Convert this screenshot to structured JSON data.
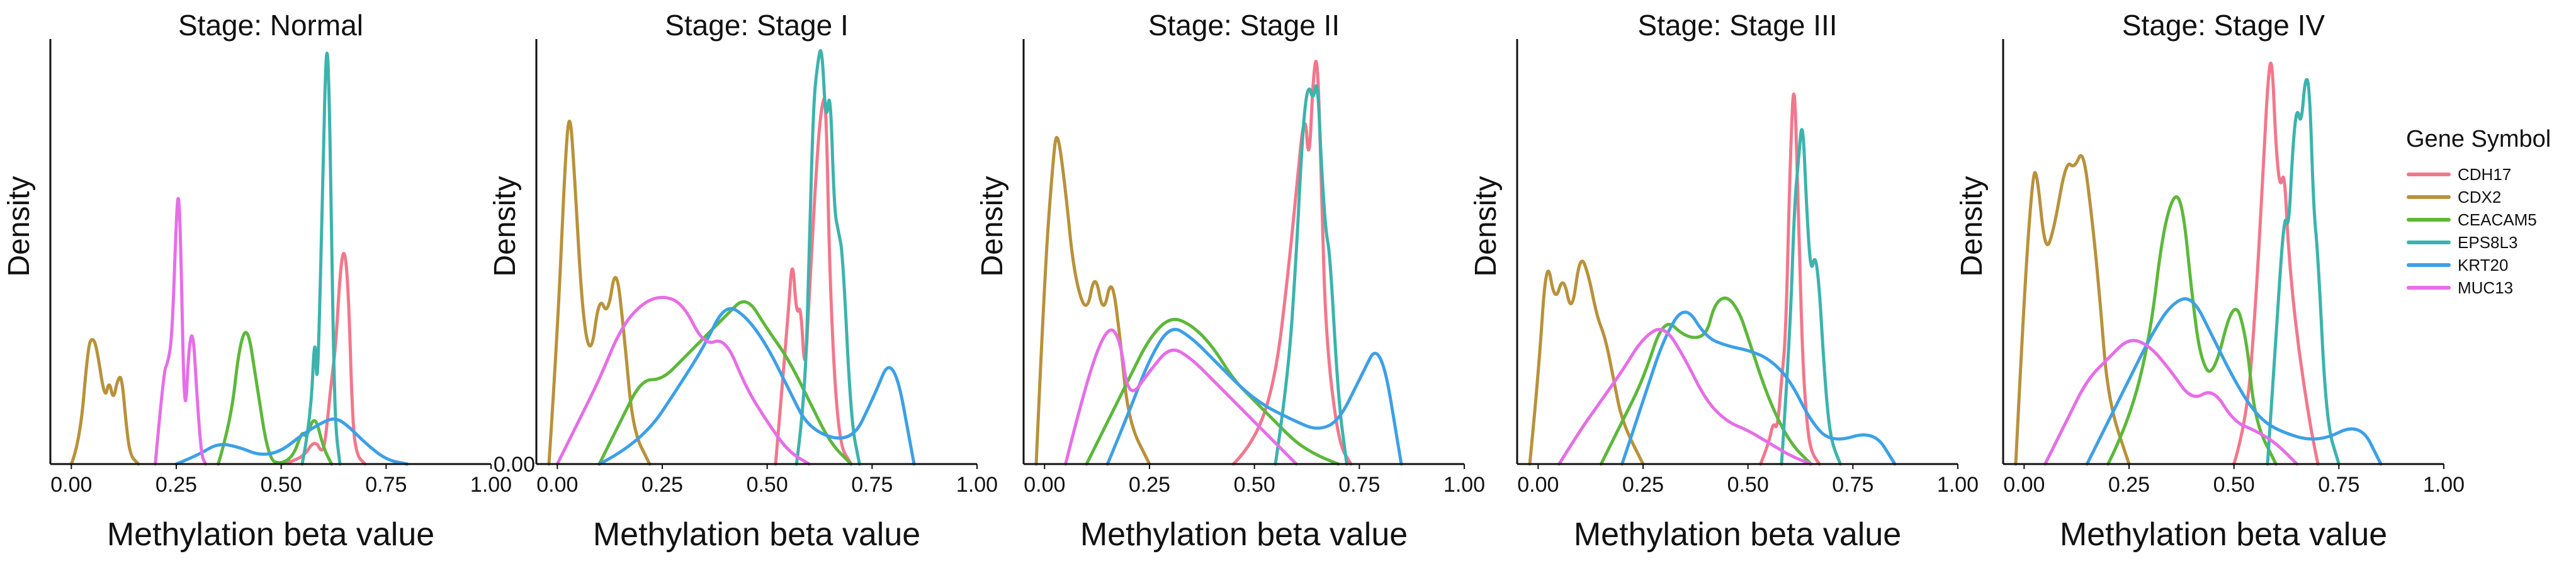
{
  "legend": {
    "title": "Gene Symbol",
    "entries": [
      {
        "label": "CDH17",
        "color": "#f2778c"
      },
      {
        "label": "CDX2",
        "color": "#b8913a"
      },
      {
        "label": "CEACAM5",
        "color": "#5cb83a"
      },
      {
        "label": "EPS8L3",
        "color": "#3cb3ad"
      },
      {
        "label": "KRT20",
        "color": "#3ca0e6"
      },
      {
        "label": "MUC13",
        "color": "#e66ee6"
      }
    ]
  },
  "chart_data": [
    {
      "type": "line",
      "title": "Stage:  Normal",
      "xlabel": "Methylation beta value",
      "ylabel": "Density",
      "xlim": [
        -0.05,
        1.0
      ],
      "ylim": [
        0,
        1.0
      ],
      "xticks": [
        0.0,
        0.25,
        0.5,
        0.75,
        1.0
      ],
      "xtick_labels": [
        "0.00",
        "0.25",
        "0.50",
        "0.75",
        "1.00"
      ],
      "yticks": [],
      "series": [
        {
          "name": "CDH17",
          "x": [
            0.5,
            0.55,
            0.58,
            0.6,
            0.61,
            0.62,
            0.63,
            0.64,
            0.65,
            0.66,
            0.67,
            0.68,
            0.7
          ],
          "y": [
            0,
            0.01,
            0.06,
            0.02,
            0.1,
            0.2,
            0.28,
            0.45,
            0.52,
            0.42,
            0.1,
            0.02,
            0
          ]
        },
        {
          "name": "CDX2",
          "x": [
            0.0,
            0.02,
            0.04,
            0.05,
            0.06,
            0.08,
            0.09,
            0.1,
            0.11,
            0.12,
            0.13,
            0.14,
            0.16
          ],
          "y": [
            0,
            0.05,
            0.28,
            0.3,
            0.28,
            0.15,
            0.2,
            0.15,
            0.2,
            0.21,
            0.1,
            0.02,
            0
          ]
        },
        {
          "name": "CEACAM5",
          "x": [
            0.35,
            0.38,
            0.4,
            0.42,
            0.44,
            0.47,
            0.5,
            0.53,
            0.55,
            0.56,
            0.58,
            0.6,
            0.62
          ],
          "y": [
            0,
            0.1,
            0.28,
            0.33,
            0.2,
            0.01,
            0,
            0.02,
            0.08,
            0.06,
            0.12,
            0.04,
            0
          ]
        },
        {
          "name": "EPS8L3",
          "x": [
            0.55,
            0.57,
            0.58,
            0.585,
            0.59,
            0.6,
            0.605,
            0.61,
            0.615,
            0.62,
            0.625,
            0.63,
            0.64
          ],
          "y": [
            0,
            0.1,
            0.32,
            0.18,
            0.3,
            0.7,
            0.92,
            1.0,
            0.85,
            0.55,
            0.25,
            0.08,
            0
          ]
        },
        {
          "name": "KRT20",
          "x": [
            0.25,
            0.3,
            0.35,
            0.4,
            0.45,
            0.5,
            0.55,
            0.6,
            0.63,
            0.66,
            0.7,
            0.75,
            0.8
          ],
          "y": [
            0,
            0.02,
            0.05,
            0.04,
            0.02,
            0.03,
            0.07,
            0.1,
            0.11,
            0.09,
            0.05,
            0.01,
            0
          ]
        },
        {
          "name": "MUC13",
          "x": [
            0.2,
            0.22,
            0.23,
            0.24,
            0.25,
            0.255,
            0.26,
            0.27,
            0.28,
            0.29,
            0.3,
            0.31,
            0.32
          ],
          "y": [
            0,
            0.22,
            0.24,
            0.3,
            0.58,
            0.65,
            0.55,
            0.08,
            0.28,
            0.32,
            0.15,
            0.02,
            0
          ]
        }
      ]
    },
    {
      "type": "line",
      "title": "Stage:  Stage I",
      "xlabel": "Methylation beta value",
      "ylabel": "Density",
      "xlim": [
        -0.05,
        1.0
      ],
      "ylim": [
        0,
        1.0
      ],
      "xticks": [
        0.0,
        0.25,
        0.5,
        0.75,
        1.0
      ],
      "xtick_labels": [
        "0.00",
        "0.25",
        "0.50",
        "0.75",
        "1.00"
      ],
      "yticks": [
        0.0
      ],
      "ytick_labels": [
        "0.00"
      ],
      "series": [
        {
          "name": "CDH17",
          "x": [
            0.52,
            0.55,
            0.56,
            0.57,
            0.58,
            0.59,
            0.6,
            0.62,
            0.63,
            0.64,
            0.65,
            0.67,
            0.7
          ],
          "y": [
            0,
            0.35,
            0.5,
            0.35,
            0.38,
            0.2,
            0.4,
            0.75,
            0.85,
            0.88,
            0.4,
            0.05,
            0
          ]
        },
        {
          "name": "CDX2",
          "x": [
            -0.02,
            0.0,
            0.02,
            0.03,
            0.04,
            0.06,
            0.08,
            0.1,
            0.12,
            0.14,
            0.16,
            0.18,
            0.22
          ],
          "y": [
            0,
            0.3,
            0.75,
            0.84,
            0.7,
            0.35,
            0.25,
            0.4,
            0.35,
            0.48,
            0.3,
            0.08,
            0
          ]
        },
        {
          "name": "CEACAM5",
          "x": [
            0.1,
            0.15,
            0.2,
            0.25,
            0.3,
            0.35,
            0.4,
            0.45,
            0.5,
            0.55,
            0.6,
            0.65,
            0.7
          ],
          "y": [
            0,
            0.1,
            0.2,
            0.2,
            0.25,
            0.3,
            0.35,
            0.4,
            0.32,
            0.25,
            0.15,
            0.05,
            0
          ]
        },
        {
          "name": "EPS8L3",
          "x": [
            0.57,
            0.59,
            0.6,
            0.61,
            0.62,
            0.63,
            0.64,
            0.65,
            0.66,
            0.67,
            0.68,
            0.7,
            0.72
          ],
          "y": [
            0,
            0.15,
            0.5,
            0.85,
            0.95,
            1.0,
            0.8,
            0.9,
            0.6,
            0.55,
            0.5,
            0.1,
            0
          ]
        },
        {
          "name": "KRT20",
          "x": [
            0.1,
            0.2,
            0.3,
            0.35,
            0.4,
            0.45,
            0.5,
            0.55,
            0.6,
            0.7,
            0.75,
            0.8,
            0.85
          ],
          "y": [
            0,
            0.05,
            0.2,
            0.28,
            0.38,
            0.35,
            0.28,
            0.18,
            0.08,
            0.05,
            0.15,
            0.27,
            0
          ]
        },
        {
          "name": "MUC13",
          "x": [
            0.0,
            0.05,
            0.1,
            0.15,
            0.2,
            0.25,
            0.3,
            0.35,
            0.4,
            0.45,
            0.5,
            0.55,
            0.6
          ],
          "y": [
            0,
            0.1,
            0.2,
            0.32,
            0.38,
            0.4,
            0.38,
            0.28,
            0.3,
            0.18,
            0.1,
            0.03,
            0
          ]
        }
      ]
    },
    {
      "type": "line",
      "title": "Stage:  Stage II",
      "xlabel": "Methylation beta value",
      "ylabel": "Density",
      "xlim": [
        -0.05,
        1.0
      ],
      "ylim": [
        0,
        1.0
      ],
      "xticks": [
        0.0,
        0.25,
        0.5,
        0.75,
        1.0
      ],
      "xtick_labels": [
        "0.00",
        "0.25",
        "0.50",
        "0.75",
        "1.00"
      ],
      "yticks": [],
      "series": [
        {
          "name": "CDH17",
          "x": [
            0.45,
            0.5,
            0.55,
            0.58,
            0.6,
            0.62,
            0.63,
            0.64,
            0.65,
            0.66,
            0.67,
            0.7,
            0.73
          ],
          "y": [
            0,
            0.05,
            0.2,
            0.45,
            0.65,
            0.85,
            0.7,
            0.92,
            0.98,
            0.65,
            0.3,
            0.05,
            0
          ]
        },
        {
          "name": "CDX2",
          "x": [
            -0.02,
            0.0,
            0.02,
            0.03,
            0.05,
            0.07,
            0.1,
            0.12,
            0.14,
            0.16,
            0.18,
            0.2,
            0.25
          ],
          "y": [
            0,
            0.45,
            0.72,
            0.8,
            0.65,
            0.45,
            0.35,
            0.46,
            0.35,
            0.45,
            0.3,
            0.1,
            0
          ]
        },
        {
          "name": "CEACAM5",
          "x": [
            0.1,
            0.15,
            0.2,
            0.25,
            0.3,
            0.35,
            0.4,
            0.45,
            0.5,
            0.55,
            0.6,
            0.65,
            0.7
          ],
          "y": [
            0,
            0.1,
            0.2,
            0.3,
            0.35,
            0.33,
            0.28,
            0.2,
            0.15,
            0.1,
            0.05,
            0.02,
            0
          ]
        },
        {
          "name": "EPS8L3",
          "x": [
            0.55,
            0.58,
            0.6,
            0.61,
            0.62,
            0.63,
            0.64,
            0.65,
            0.66,
            0.67,
            0.68,
            0.7,
            0.72
          ],
          "y": [
            0,
            0.2,
            0.5,
            0.7,
            0.85,
            0.9,
            0.86,
            0.92,
            0.7,
            0.55,
            0.5,
            0.15,
            0
          ]
        },
        {
          "name": "KRT20",
          "x": [
            0.15,
            0.2,
            0.25,
            0.3,
            0.35,
            0.4,
            0.5,
            0.6,
            0.65,
            0.7,
            0.75,
            0.8,
            0.85
          ],
          "y": [
            0,
            0.12,
            0.25,
            0.33,
            0.3,
            0.25,
            0.15,
            0.1,
            0.08,
            0.1,
            0.2,
            0.3,
            0
          ]
        },
        {
          "name": "MUC13",
          "x": [
            0.05,
            0.1,
            0.15,
            0.18,
            0.2,
            0.25,
            0.3,
            0.35,
            0.4,
            0.45,
            0.5,
            0.55,
            0.6
          ],
          "y": [
            0,
            0.2,
            0.33,
            0.3,
            0.15,
            0.22,
            0.28,
            0.25,
            0.2,
            0.15,
            0.1,
            0.05,
            0
          ]
        }
      ]
    },
    {
      "type": "line",
      "title": "Stage:  Stage III",
      "xlabel": "Methylation beta value",
      "ylabel": "Density",
      "xlim": [
        -0.05,
        1.0
      ],
      "ylim": [
        0,
        1.0
      ],
      "xticks": [
        0.0,
        0.25,
        0.5,
        0.75,
        1.0
      ],
      "xtick_labels": [
        "0.00",
        "0.25",
        "0.50",
        "0.75",
        "1.00"
      ],
      "yticks": [],
      "series": [
        {
          "name": "CDH17",
          "x": [
            0.53,
            0.55,
            0.56,
            0.57,
            0.58,
            0.59,
            0.6,
            0.61,
            0.62,
            0.63,
            0.64,
            0.65,
            0.67
          ],
          "y": [
            0,
            0.05,
            0.1,
            0.08,
            0.2,
            0.3,
            0.7,
            0.95,
            0.6,
            0.25,
            0.1,
            0.03,
            0
          ]
        },
        {
          "name": "CDX2",
          "x": [
            -0.02,
            0.0,
            0.02,
            0.04,
            0.06,
            0.08,
            0.1,
            0.12,
            0.14,
            0.16,
            0.18,
            0.2,
            0.25
          ],
          "y": [
            0,
            0.2,
            0.5,
            0.38,
            0.45,
            0.35,
            0.5,
            0.45,
            0.35,
            0.3,
            0.2,
            0.1,
            0
          ]
        },
        {
          "name": "CEACAM5",
          "x": [
            0.15,
            0.2,
            0.25,
            0.3,
            0.35,
            0.4,
            0.42,
            0.45,
            0.48,
            0.5,
            0.55,
            0.6,
            0.65
          ],
          "y": [
            0,
            0.1,
            0.2,
            0.35,
            0.3,
            0.3,
            0.38,
            0.4,
            0.36,
            0.3,
            0.15,
            0.05,
            0
          ]
        },
        {
          "name": "EPS8L3",
          "x": [
            0.58,
            0.6,
            0.61,
            0.62,
            0.63,
            0.64,
            0.65,
            0.66,
            0.67,
            0.68,
            0.69,
            0.7,
            0.72
          ],
          "y": [
            0,
            0.3,
            0.6,
            0.72,
            0.83,
            0.6,
            0.45,
            0.5,
            0.42,
            0.25,
            0.12,
            0.05,
            0
          ]
        },
        {
          "name": "KRT20",
          "x": [
            0.2,
            0.25,
            0.3,
            0.35,
            0.4,
            0.45,
            0.5,
            0.55,
            0.6,
            0.65,
            0.7,
            0.8,
            0.85
          ],
          "y": [
            0,
            0.15,
            0.3,
            0.38,
            0.3,
            0.28,
            0.27,
            0.25,
            0.2,
            0.1,
            0.05,
            0.08,
            0
          ]
        },
        {
          "name": "MUC13",
          "x": [
            0.05,
            0.1,
            0.15,
            0.2,
            0.25,
            0.3,
            0.35,
            0.4,
            0.45,
            0.5,
            0.55,
            0.6,
            0.65
          ],
          "y": [
            0,
            0.08,
            0.15,
            0.22,
            0.3,
            0.33,
            0.25,
            0.15,
            0.1,
            0.08,
            0.05,
            0.02,
            0
          ]
        }
      ]
    },
    {
      "type": "line",
      "title": "Stage:  Stage IV",
      "xlabel": "Methylation beta value",
      "ylabel": "Density",
      "xlim": [
        -0.05,
        1.0
      ],
      "ylim": [
        0,
        1.0
      ],
      "xticks": [
        0.0,
        0.25,
        0.5,
        0.75,
        1.0
      ],
      "xtick_labels": [
        "0.00",
        "0.25",
        "0.50",
        "0.75",
        "1.00"
      ],
      "yticks": [],
      "series": [
        {
          "name": "CDH17",
          "x": [
            0.5,
            0.53,
            0.55,
            0.57,
            0.58,
            0.59,
            0.6,
            0.61,
            0.62,
            0.63,
            0.65,
            0.68,
            0.7
          ],
          "y": [
            0,
            0.1,
            0.35,
            0.7,
            0.9,
            0.98,
            0.75,
            0.65,
            0.7,
            0.5,
            0.3,
            0.1,
            0
          ]
        },
        {
          "name": "CDX2",
          "x": [
            -0.02,
            0.0,
            0.02,
            0.03,
            0.05,
            0.07,
            0.1,
            0.12,
            0.14,
            0.16,
            0.18,
            0.2,
            0.25
          ],
          "y": [
            0,
            0.4,
            0.68,
            0.7,
            0.5,
            0.55,
            0.72,
            0.7,
            0.75,
            0.6,
            0.4,
            0.15,
            0
          ]
        },
        {
          "name": "CEACAM5",
          "x": [
            0.2,
            0.25,
            0.3,
            0.33,
            0.36,
            0.38,
            0.4,
            0.42,
            0.45,
            0.5,
            0.53,
            0.55,
            0.6
          ],
          "y": [
            0,
            0.1,
            0.3,
            0.55,
            0.65,
            0.6,
            0.4,
            0.25,
            0.2,
            0.4,
            0.3,
            0.1,
            0
          ]
        },
        {
          "name": "EPS8L3",
          "x": [
            0.58,
            0.6,
            0.62,
            0.63,
            0.64,
            0.65,
            0.66,
            0.67,
            0.68,
            0.69,
            0.7,
            0.72,
            0.75
          ],
          "y": [
            0,
            0.3,
            0.6,
            0.55,
            0.75,
            0.85,
            0.8,
            0.92,
            0.9,
            0.6,
            0.5,
            0.1,
            0
          ]
        },
        {
          "name": "KRT20",
          "x": [
            0.15,
            0.2,
            0.25,
            0.3,
            0.35,
            0.4,
            0.45,
            0.5,
            0.55,
            0.6,
            0.7,
            0.8,
            0.85
          ],
          "y": [
            0,
            0.1,
            0.2,
            0.3,
            0.38,
            0.4,
            0.3,
            0.2,
            0.12,
            0.08,
            0.05,
            0.1,
            0
          ]
        },
        {
          "name": "MUC13",
          "x": [
            0.05,
            0.1,
            0.15,
            0.2,
            0.25,
            0.3,
            0.35,
            0.4,
            0.45,
            0.5,
            0.55,
            0.6,
            0.65
          ],
          "y": [
            0,
            0.1,
            0.2,
            0.25,
            0.3,
            0.28,
            0.22,
            0.15,
            0.18,
            0.1,
            0.08,
            0.05,
            0
          ]
        }
      ]
    }
  ]
}
